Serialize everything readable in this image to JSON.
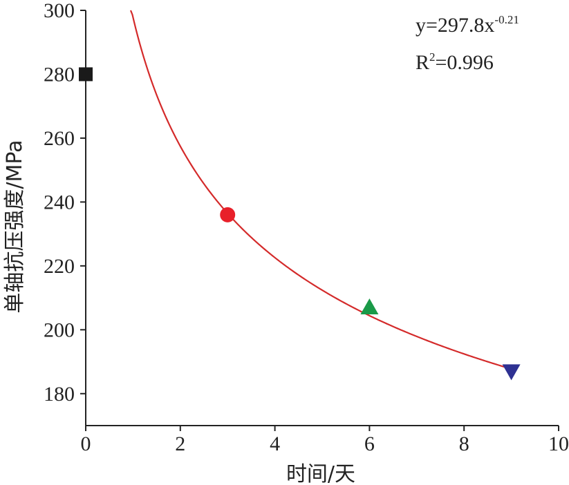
{
  "chart_data": {
    "type": "scatter",
    "xlabel": "时间/天",
    "ylabel": "单轴抗压强度/MPa",
    "xlim": [
      0,
      10
    ],
    "ylim": [
      170,
      300
    ],
    "x_ticks": [
      "0",
      "2",
      "4",
      "6",
      "8",
      "10"
    ],
    "y_ticks": [
      "180",
      "200",
      "220",
      "240",
      "260",
      "280",
      "300"
    ],
    "grid": false,
    "series": [
      {
        "x": [
          0
        ],
        "y": [
          280
        ],
        "marker": "square",
        "color": "#1a1a1a"
      },
      {
        "x": [
          3
        ],
        "y": [
          236
        ],
        "marker": "circle",
        "color": "#e8202a"
      },
      {
        "x": [
          6
        ],
        "y": [
          207
        ],
        "marker": "triangle-up",
        "color": "#1a9a48"
      },
      {
        "x": [
          9
        ],
        "y": [
          187
        ],
        "marker": "triangle-down",
        "color": "#2e3192"
      }
    ],
    "fit": {
      "equation_prefix": "y=297.8x",
      "equation_exponent": "-0.21",
      "r2_prefix": "R",
      "r2_sup": "2",
      "r2_value": "=0.996",
      "coefficient": 297.8,
      "exponent": -0.21,
      "x_range": [
        0.95,
        9
      ],
      "color": "#d42a2a"
    }
  }
}
